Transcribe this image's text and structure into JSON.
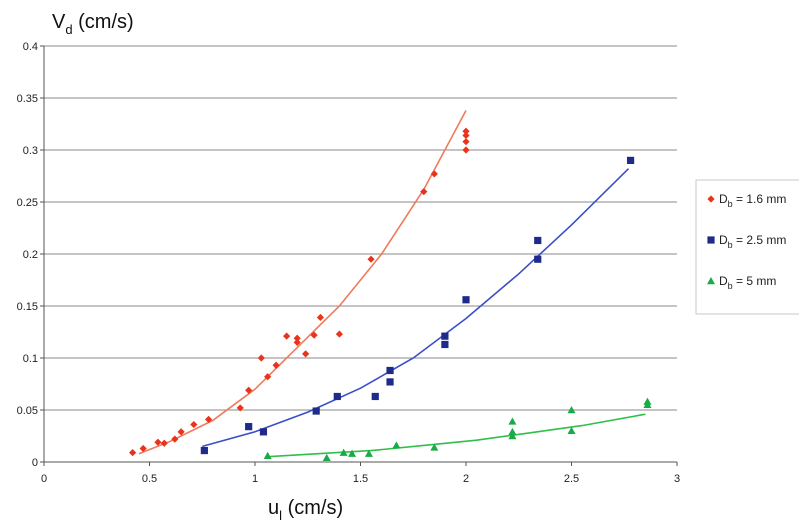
{
  "chart_data": {
    "type": "scatter",
    "ylabel_main": "V",
    "ylabel_sub": "d",
    "ylabel_unit": " (cm/s)",
    "xlabel_main": "u",
    "xlabel_sub": "l",
    "xlabel_unit": " (cm/s)",
    "xlim": [
      0,
      3
    ],
    "ylim": [
      0,
      0.4
    ],
    "x_ticks": [
      "0",
      "0.5",
      "1",
      "1.5",
      "2",
      "2.5",
      "3"
    ],
    "y_ticks": [
      "0",
      "0.05",
      "0.1",
      "0.15",
      "0.2",
      "0.25",
      "0.3",
      "0.35",
      "0.4"
    ],
    "grid": "horizontal",
    "legend_position": "right",
    "series": [
      {
        "legend_main": "D",
        "legend_sub": "b",
        "legend_rest": " = 1.6 mm",
        "color": "#e8341c",
        "line_color": "#f07a5a",
        "marker": "diamond",
        "points": [
          [
            0.42,
            0.009
          ],
          [
            0.47,
            0.013
          ],
          [
            0.54,
            0.019
          ],
          [
            0.57,
            0.018
          ],
          [
            0.62,
            0.022
          ],
          [
            0.65,
            0.029
          ],
          [
            0.71,
            0.036
          ],
          [
            0.78,
            0.041
          ],
          [
            0.93,
            0.052
          ],
          [
            0.97,
            0.069
          ],
          [
            1.03,
            0.1
          ],
          [
            1.06,
            0.082
          ],
          [
            1.1,
            0.093
          ],
          [
            1.15,
            0.121
          ],
          [
            1.2,
            0.119
          ],
          [
            1.2,
            0.115
          ],
          [
            1.24,
            0.104
          ],
          [
            1.28,
            0.122
          ],
          [
            1.31,
            0.139
          ],
          [
            1.4,
            0.123
          ],
          [
            1.55,
            0.195
          ],
          [
            1.8,
            0.26
          ],
          [
            1.85,
            0.277
          ],
          [
            2.0,
            0.318
          ],
          [
            2.0,
            0.314
          ],
          [
            2.0,
            0.308
          ],
          [
            2.0,
            0.3
          ]
        ],
        "fit": [
          [
            0.45,
            0.008
          ],
          [
            0.6,
            0.02
          ],
          [
            0.8,
            0.04
          ],
          [
            1.0,
            0.07
          ],
          [
            1.2,
            0.11
          ],
          [
            1.4,
            0.15
          ],
          [
            1.6,
            0.2
          ],
          [
            1.8,
            0.262
          ],
          [
            2.0,
            0.338
          ]
        ]
      },
      {
        "legend_main": "D",
        "legend_sub": "b",
        "legend_rest": " = 2.5 mm",
        "color": "#1f2b8a",
        "line_color": "#3a4fc8",
        "marker": "square",
        "points": [
          [
            0.76,
            0.011
          ],
          [
            0.97,
            0.034
          ],
          [
            1.04,
            0.029
          ],
          [
            1.29,
            0.049
          ],
          [
            1.39,
            0.063
          ],
          [
            1.57,
            0.063
          ],
          [
            1.64,
            0.088
          ],
          [
            1.64,
            0.077
          ],
          [
            1.9,
            0.121
          ],
          [
            1.9,
            0.113
          ],
          [
            2.0,
            0.156
          ],
          [
            2.34,
            0.213
          ],
          [
            2.34,
            0.195
          ],
          [
            2.78,
            0.29
          ]
        ],
        "fit": [
          [
            0.75,
            0.015
          ],
          [
            1.0,
            0.029
          ],
          [
            1.25,
            0.048
          ],
          [
            1.5,
            0.071
          ],
          [
            1.75,
            0.1
          ],
          [
            2.0,
            0.138
          ],
          [
            2.25,
            0.181
          ],
          [
            2.5,
            0.228
          ],
          [
            2.77,
            0.282
          ]
        ]
      },
      {
        "legend_main": "D",
        "legend_sub": "b",
        "legend_rest": " = 5 mm",
        "color": "#1aaa48",
        "line_color": "#2fbf4a",
        "marker": "triangle",
        "points": [
          [
            1.06,
            0.006
          ],
          [
            1.34,
            0.004
          ],
          [
            1.42,
            0.009
          ],
          [
            1.46,
            0.008
          ],
          [
            1.54,
            0.008
          ],
          [
            1.67,
            0.016
          ],
          [
            1.85,
            0.014
          ],
          [
            2.22,
            0.039
          ],
          [
            2.22,
            0.029
          ],
          [
            2.22,
            0.025
          ],
          [
            2.5,
            0.05
          ],
          [
            2.5,
            0.03
          ],
          [
            2.86,
            0.058
          ],
          [
            2.86,
            0.055
          ]
        ],
        "fit": [
          [
            1.05,
            0.005
          ],
          [
            1.3,
            0.008
          ],
          [
            1.55,
            0.011
          ],
          [
            1.8,
            0.016
          ],
          [
            2.05,
            0.021
          ],
          [
            2.3,
            0.028
          ],
          [
            2.55,
            0.035
          ],
          [
            2.85,
            0.046
          ]
        ]
      }
    ]
  }
}
